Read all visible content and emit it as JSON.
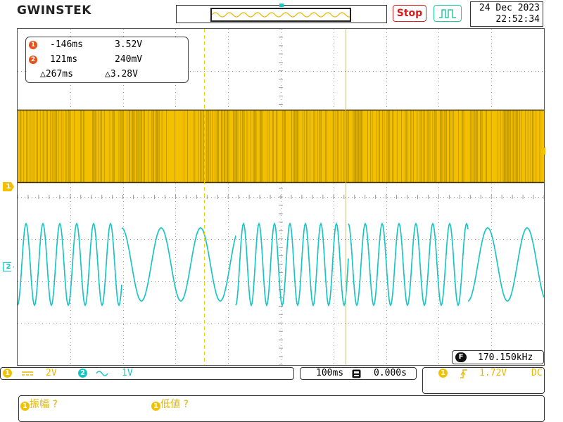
{
  "brand": "GWINSTEK",
  "run_button": "Stop",
  "clock": {
    "date": "24 Dec 2023",
    "time": "22:52:34"
  },
  "cursors": {
    "marker1": "1",
    "marker2": "2",
    "c1_time": "-146ms",
    "c1_volt": "3.52V",
    "c2_time": "121ms",
    "c2_volt": "240mV",
    "delta_time": "△267ms",
    "delta_volt": "△3.28V"
  },
  "frequency": {
    "badge": "F",
    "value": "170.150kHz"
  },
  "channels": {
    "ch1": {
      "num": "1",
      "coupling_icon": "dc-coupling-icon",
      "scale": "2V",
      "color": "#f3c000"
    },
    "ch2": {
      "num": "2",
      "coupling_icon": "ac-coupling-icon",
      "scale": "1V",
      "color": "#16c6c6"
    }
  },
  "timebase": {
    "scale": "100ms",
    "position": "0.000s"
  },
  "trigger": {
    "source": "1",
    "slope_icon": "rising-edge-icon",
    "level": "1.72V",
    "coupling": "DC"
  },
  "measurements": [
    {
      "channel": "1",
      "label": "振幅 ?"
    },
    {
      "channel": "1",
      "label": "低値 ?"
    }
  ],
  "colors": {
    "ch1": "#f3c000",
    "ch2": "#16c6c6",
    "cursor": "#f5d000",
    "stop": "#e01818",
    "marker": "#e8501a"
  }
}
